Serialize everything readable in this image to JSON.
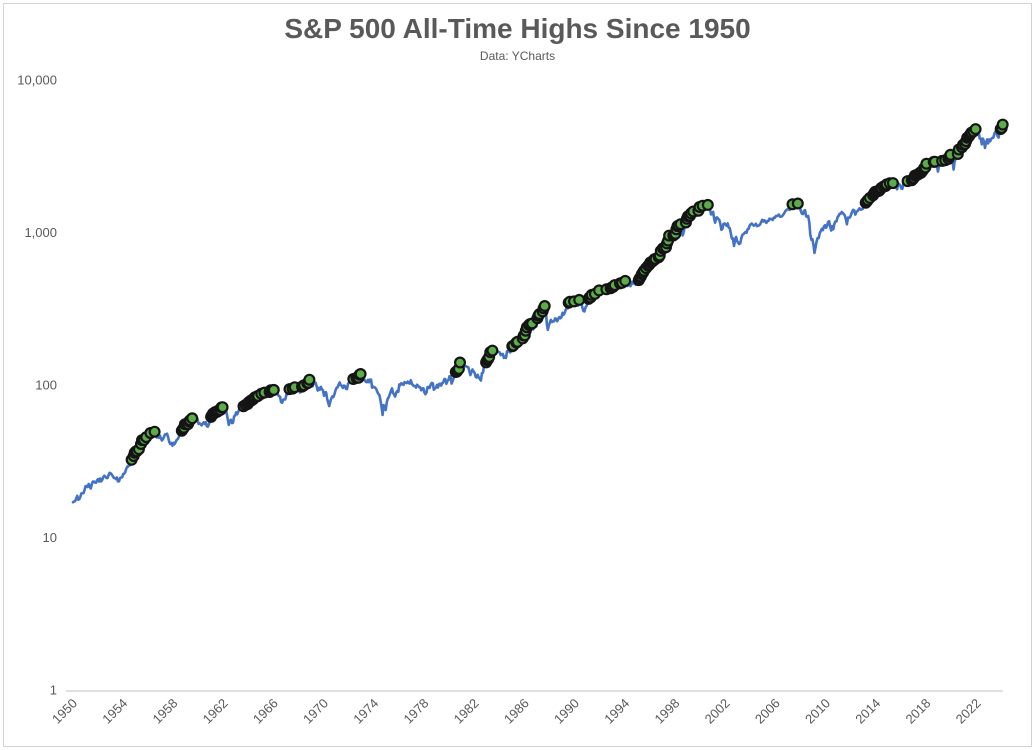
{
  "chart_data": {
    "type": "line",
    "title": "S&P 500 All-Time Highs Since 1950",
    "subtitle": "Data: YCharts",
    "grid": "off",
    "legend": "none",
    "y_axis": {
      "scale": "log",
      "min": 1,
      "max": 10000,
      "ticks": [
        {
          "value": 1,
          "label": "1"
        },
        {
          "value": 10,
          "label": "10"
        },
        {
          "value": 100,
          "label": "100"
        },
        {
          "value": 1000,
          "label": "1,000"
        },
        {
          "value": 10000,
          "label": "10,000"
        }
      ]
    },
    "x_axis": {
      "ticks": [
        1950,
        1954,
        1958,
        1962,
        1966,
        1970,
        1974,
        1978,
        1982,
        1986,
        1990,
        1994,
        1998,
        2002,
        2006,
        2010,
        2014,
        2018,
        2022
      ]
    },
    "ath_markers": {
      "meaning": "months closing at a new all-time high (green dots)",
      "prior_all_time_high": 31.86
    },
    "colors": {
      "line": "#4472C4",
      "marker_fill": "#5CAD4A",
      "marker_stroke": "#141414",
      "axis_text": "#595959",
      "axis_line": "#D6D6D6",
      "title_text": "#595959"
    },
    "series": [
      {
        "name": "S&P 500 monthly close",
        "start_year": 1950,
        "interval": "monthly",
        "values": [
          17.05,
          17.22,
          17.29,
          17.96,
          18.78,
          17.69,
          17.84,
          18.42,
          19.45,
          19.53,
          19.51,
          20.43,
          21.66,
          21.8,
          21.48,
          22.43,
          21.52,
          20.96,
          22.4,
          23.28,
          23.26,
          22.94,
          22.88,
          23.77,
          24.14,
          23.26,
          24.37,
          23.32,
          23.86,
          24.96,
          25.4,
          25.03,
          24.54,
          24.52,
          25.66,
          26.57,
          26.38,
          25.9,
          25.29,
          24.62,
          24.54,
          24.14,
          24.75,
          23.32,
          23.35,
          24.54,
          24.76,
          24.81,
          26.08,
          26.15,
          26.94,
          28.26,
          29.19,
          29.21,
          30.88,
          29.83,
          32.31,
          31.68,
          34.24,
          35.98,
          36.63,
          36.76,
          36.58,
          37.96,
          37.91,
          41.03,
          43.52,
          43.18,
          43.67,
          42.34,
          45.51,
          45.48,
          43.82,
          45.34,
          48.48,
          48.38,
          45.2,
          46.97,
          49.39,
          47.51,
          45.35,
          45.58,
          45.08,
          46.67,
          44.72,
          43.26,
          44.11,
          45.74,
          47.43,
          47.37,
          47.91,
          45.22,
          42.42,
          41.06,
          41.72,
          39.99,
          41.7,
          40.84,
          42.1,
          43.44,
          44.09,
          45.24,
          47.19,
          47.75,
          50.06,
          51.33,
          52.48,
          55.21,
          55.42,
          55.41,
          55.44,
          57.59,
          58.68,
          58.47,
          60.51,
          59.6,
          56.88,
          57.52,
          58.28,
          59.89,
          55.61,
          56.12,
          55.34,
          54.37,
          55.83,
          56.92,
          55.51,
          56.96,
          53.52,
          53.39,
          55.54,
          58.11,
          61.78,
          63.44,
          65.06,
          65.31,
          66.56,
          64.64,
          66.76,
          68.07,
          66.73,
          68.62,
          71.32,
          71.55,
          68.84,
          69.96,
          69.55,
          65.24,
          59.63,
          54.75,
          58.23,
          59.12,
          56.27,
          56.52,
          62.26,
          63.1,
          66.2,
          64.29,
          66.57,
          69.8,
          70.8,
          69.37,
          69.13,
          72.5,
          71.7,
          74.01,
          73.23,
          75.02,
          77.04,
          77.8,
          78.98,
          79.46,
          80.37,
          81.69,
          83.18,
          81.83,
          84.18,
          84.86,
          84.42,
          84.75,
          87.56,
          87.43,
          86.16,
          89.11,
          88.42,
          84.12,
          85.25,
          87.17,
          89.96,
          92.42,
          91.61,
          92.43,
          92.88,
          91.22,
          89.23,
          91.06,
          86.13,
          84.74,
          83.6,
          77.1,
          76.56,
          80.2,
          80.45,
          80.33,
          86.61,
          86.78,
          90.2,
          94.01,
          89.08,
          90.64,
          94.75,
          93.64,
          96.71,
          93.9,
          94.0,
          96.47,
          92.24,
          89.36,
          90.2,
          97.59,
          98.68,
          99.58,
          97.74,
          98.86,
          102.67,
          103.41,
          108.37,
          103.86,
          103.01,
          98.13,
          101.51,
          103.69,
          103.46,
          97.71,
          91.83,
          95.51,
          93.12,
          97.24,
          93.81,
          92.06,
          85.02,
          89.5,
          89.63,
          81.52,
          76.55,
          72.72,
          78.05,
          81.52,
          84.3,
          83.25,
          87.2,
          92.15,
          95.88,
          96.75,
          100.31,
          103.95,
          99.63,
          98.7,
          95.58,
          99.03,
          98.34,
          94.23,
          93.99,
          102.09,
          103.94,
          106.57,
          107.2,
          107.67,
          109.53,
          107.14,
          107.39,
          111.09,
          110.55,
          111.58,
          116.67,
          118.05,
          116.03,
          111.68,
          111.52,
          106.97,
          104.95,
          104.26,
          108.22,
          104.25,
          108.43,
          108.29,
          95.96,
          97.55,
          96.57,
          96.22,
          93.98,
          90.31,
          87.28,
          86.0,
          79.31,
          72.15,
          63.54,
          73.9,
          69.97,
          68.56,
          76.98,
          81.59,
          83.36,
          87.3,
          91.15,
          95.19,
          88.75,
          86.88,
          83.87,
          89.04,
          91.24,
          90.19,
          100.86,
          99.71,
          102.77,
          101.64,
          100.18,
          104.28,
          103.44,
          102.91,
          105.24,
          102.9,
          102.1,
          107.46,
          102.03,
          99.82,
          98.42,
          98.44,
          96.12,
          100.48,
          98.85,
          96.77,
          96.53,
          92.34,
          94.83,
          95.1,
          89.25,
          87.04,
          89.21,
          96.83,
          97.24,
          95.53,
          100.68,
          103.29,
          102.54,
          93.15,
          94.7,
          96.11,
          99.93,
          96.28,
          101.59,
          101.76,
          99.08,
          102.91,
          103.81,
          109.32,
          109.32,
          101.82,
          106.16,
          107.94,
          114.16,
          113.66,
          102.09,
          106.29,
          111.24,
          114.24,
          121.67,
          122.38,
          125.46,
          127.47,
          140.52,
          135.76,
          129.55,
          131.27,
          136.0,
          132.81,
          132.59,
          131.21,
          130.92,
          122.79,
          116.18,
          121.89,
          126.35,
          122.55,
          120.4,
          113.11,
          111.96,
          116.44,
          111.88,
          109.61,
          107.09,
          119.51,
          120.42,
          133.71,
          138.54,
          140.64,
          145.3,
          148.06,
          152.96,
          164.42,
          162.39,
          168.11,
          162.56,
          164.4,
          166.07,
          163.55,
          166.4,
          164.93,
          163.41,
          157.06,
          159.18,
          160.05,
          150.55,
          153.18,
          150.66,
          166.68,
          166.1,
          166.09,
          163.58,
          167.24,
          179.63,
          181.18,
          180.66,
          179.83,
          189.55,
          191.85,
          190.92,
          188.63,
          182.08,
          189.82,
          202.17,
          211.28,
          211.78,
          226.92,
          238.9,
          235.52,
          247.35,
          250.84,
          236.12,
          252.93,
          231.32,
          243.98,
          249.22,
          242.17,
          274.08,
          284.2,
          291.7,
          288.36,
          290.1,
          304.0,
          318.66,
          329.8,
          321.83,
          251.79,
          230.3,
          247.08,
          257.07,
          267.82,
          258.89,
          261.33,
          262.16,
          273.5,
          272.02,
          261.52,
          271.91,
          278.97,
          273.7,
          277.72,
          297.47,
          288.86,
          294.87,
          309.64,
          320.52,
          317.98,
          346.08,
          351.45,
          349.15,
          340.36,
          345.99,
          353.4,
          329.08,
          331.89,
          339.94,
          330.8,
          361.23,
          358.02,
          356.15,
          322.56,
          306.05,
          304.0,
          322.22,
          330.22,
          343.93,
          367.07,
          375.22,
          375.35,
          389.83,
          371.16,
          387.81,
          395.43,
          387.86,
          392.46,
          375.22,
          417.09,
          408.79,
          412.7,
          403.69,
          414.95,
          415.35,
          408.14,
          424.21,
          414.03,
          417.8,
          418.68,
          431.35,
          435.71,
          438.78,
          443.38,
          451.67,
          440.19,
          450.19,
          450.53,
          448.13,
          463.56,
          458.93,
          467.83,
          461.79,
          466.45,
          481.61,
          467.14,
          445.77,
          450.91,
          456.5,
          444.27,
          458.26,
          475.49,
          462.69,
          472.35,
          453.69,
          459.27,
          470.42,
          487.39,
          500.71,
          514.71,
          533.4,
          544.75,
          562.06,
          561.88,
          584.41,
          581.5,
          605.37,
          615.93,
          636.02,
          640.43,
          645.5,
          654.17,
          669.12,
          670.63,
          639.95,
          651.99,
          687.31,
          705.27,
          757.02,
          740.74,
          786.16,
          790.82,
          757.12,
          801.34,
          848.28,
          885.14,
          954.29,
          899.47,
          947.28,
          914.62,
          955.4,
          970.43,
          980.28,
          1049.34,
          1101.75,
          1111.75,
          1090.82,
          1133.84,
          1120.67,
          957.28,
          1017.01,
          1098.67,
          1163.63,
          1229.23,
          1279.64,
          1238.33,
          1286.37,
          1335.18,
          1301.84,
          1372.71,
          1328.72,
          1320.41,
          1282.71,
          1362.93,
          1388.91,
          1469.25,
          1394.46,
          1366.42,
          1498.58,
          1452.43,
          1420.6,
          1454.6,
          1430.83,
          1517.68,
          1436.51,
          1429.4,
          1314.95,
          1320.28,
          1366.01,
          1239.94,
          1160.33,
          1249.46,
          1255.82,
          1224.38,
          1211.23,
          1133.58,
          1040.94,
          1059.78,
          1139.45,
          1148.08,
          1130.2,
          1106.73,
          1147.39,
          1076.92,
          1067.14,
          989.82,
          911.62,
          916.07,
          815.28,
          885.76,
          936.31,
          879.82,
          855.7,
          841.15,
          848.18,
          916.92,
          963.59,
          974.5,
          990.31,
          1008.01,
          995.97,
          1050.71,
          1058.2,
          1111.92,
          1131.13,
          1144.94,
          1126.21,
          1107.3,
          1120.68,
          1140.84,
          1101.72,
          1104.24,
          1114.58,
          1130.2,
          1173.82,
          1211.92,
          1181.27,
          1203.6,
          1180.59,
          1156.85,
          1191.5,
          1191.33,
          1234.18,
          1220.33,
          1228.81,
          1207.01,
          1249.48,
          1248.29,
          1280.08,
          1280.66,
          1294.87,
          1310.61,
          1270.09,
          1270.2,
          1276.66,
          1303.82,
          1335.85,
          1377.94,
          1400.63,
          1418.3,
          1438.24,
          1406.82,
          1420.86,
          1482.37,
          1530.62,
          1503.35,
          1455.27,
          1473.99,
          1526.75,
          1549.38,
          1481.14,
          1468.36,
          1378.55,
          1330.63,
          1322.7,
          1385.59,
          1400.38,
          1280.0,
          1267.38,
          1282.83,
          1166.36,
          968.75,
          896.24,
          903.25,
          825.88,
          735.09,
          797.87,
          872.81,
          919.14,
          919.32,
          987.48,
          1020.62,
          1057.08,
          1036.19,
          1095.63,
          1115.1,
          1073.87,
          1104.49,
          1169.43,
          1186.69,
          1089.41,
          1030.71,
          1101.6,
          1049.33,
          1141.2,
          1183.26,
          1180.55,
          1257.64,
          1286.12,
          1327.22,
          1325.83,
          1363.61,
          1345.2,
          1320.64,
          1292.28,
          1218.89,
          1131.42,
          1253.3,
          1246.96,
          1257.6,
          1312.41,
          1365.68,
          1408.47,
          1397.91,
          1310.33,
          1362.16,
          1379.32,
          1406.58,
          1440.67,
          1412.16,
          1416.18,
          1426.19,
          1498.11,
          1514.68,
          1569.19,
          1597.57,
          1630.74,
          1606.28,
          1685.73,
          1632.97,
          1681.55,
          1756.54,
          1805.81,
          1848.36,
          1782.59,
          1859.45,
          1872.34,
          1883.95,
          1923.57,
          1960.23,
          1930.67,
          2003.37,
          1972.29,
          2018.05,
          2067.56,
          2058.9,
          1994.99,
          2104.5,
          2067.89,
          2085.51,
          2107.39,
          2063.11,
          2103.84,
          1972.18,
          1920.03,
          2079.36,
          2080.41,
          2043.94,
          1940.24,
          1932.23,
          2059.74,
          2065.3,
          2096.96,
          2098.86,
          2173.6,
          2170.95,
          2168.27,
          2126.15,
          2198.81,
          2238.83,
          2278.87,
          2363.64,
          2362.72,
          2384.2,
          2411.8,
          2423.41,
          2470.3,
          2471.65,
          2519.36,
          2575.26,
          2647.58,
          2673.61,
          2823.81,
          2713.83,
          2640.87,
          2648.05,
          2705.27,
          2718.37,
          2816.29,
          2901.52,
          2913.98,
          2711.74,
          2760.17,
          2506.85,
          2704.1,
          2784.49,
          2834.4,
          2945.83,
          2752.06,
          2941.76,
          2980.38,
          2926.46,
          2976.74,
          3037.56,
          3140.98,
          3230.78,
          3225.52,
          2954.22,
          2584.59,
          2912.43,
          3044.31,
          3100.29,
          3271.12,
          3500.31,
          3363.0,
          3269.96,
          3621.63,
          3756.07,
          3714.24,
          3811.15,
          3972.89,
          4181.17,
          4204.11,
          4297.5,
          4395.26,
          4522.68,
          4307.54,
          4605.38,
          4567.0,
          4766.18,
          4515.55,
          4373.94,
          4530.41,
          4131.93,
          4132.15,
          3785.38,
          4130.29,
          3955.0,
          3585.62,
          3871.98,
          4080.11,
          3839.5,
          4076.6,
          3970.15,
          4109.31,
          4169.48,
          4179.83,
          4450.38,
          4588.96,
          4507.66,
          4288.05,
          4193.8,
          4567.8,
          4769.83,
          4845.65,
          5096.27
        ]
      }
    ]
  }
}
